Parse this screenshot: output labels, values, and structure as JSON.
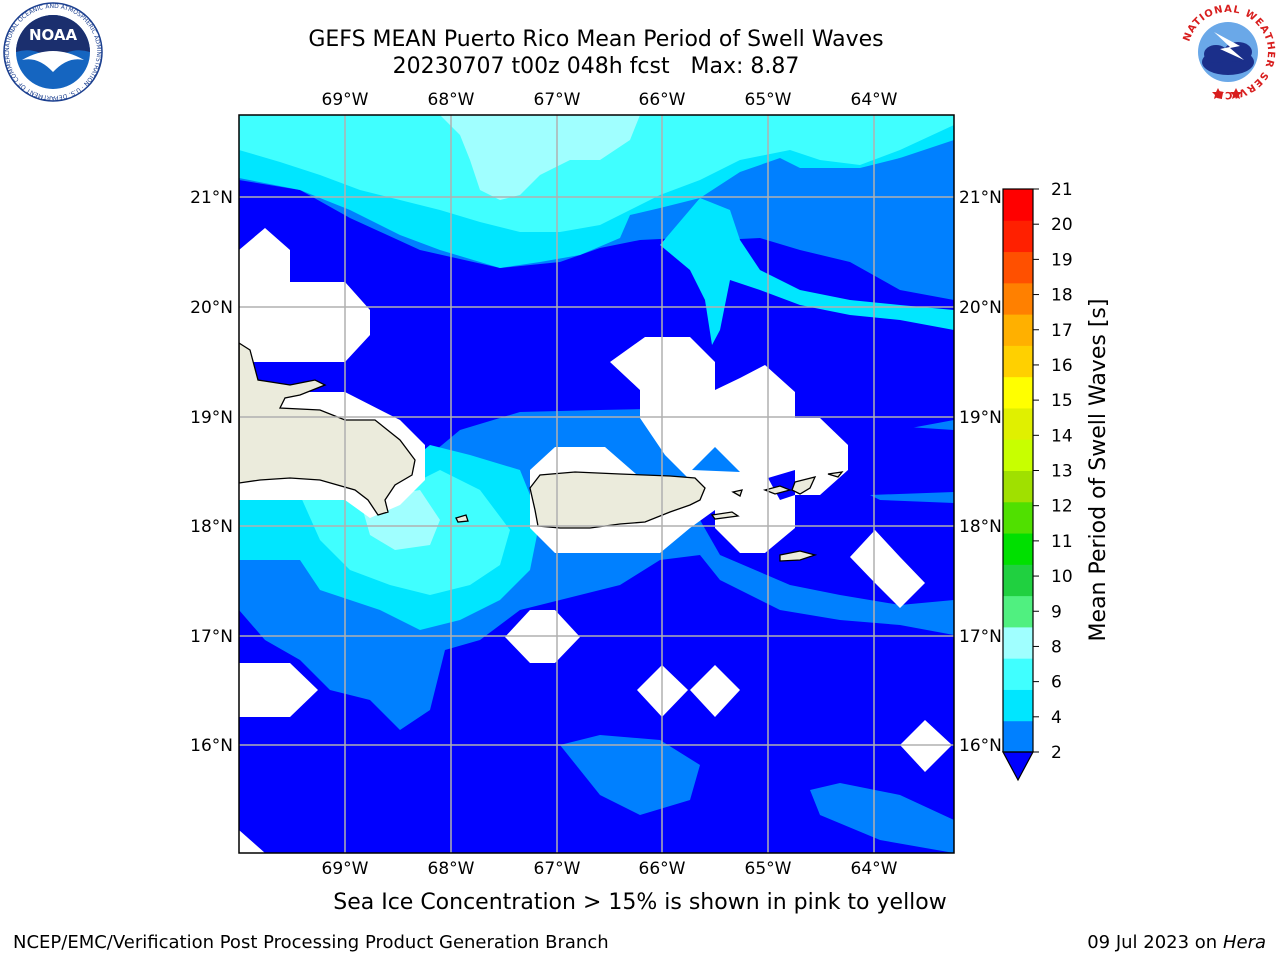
{
  "title": {
    "line1": "GEFS MEAN Puerto Rico Mean Period of Swell Waves",
    "line2": "20230707 t00z 048h fcst   Max: 8.87"
  },
  "map": {
    "longitude_labels": [
      "69°W",
      "68°W",
      "67°W",
      "66°W",
      "65°W",
      "64°W"
    ],
    "latitude_labels": [
      "21°N",
      "20°N",
      "19°N",
      "18°N",
      "17°N",
      "16°N"
    ],
    "land_color": "#ebebdc",
    "grid_color": "#b0b0b0"
  },
  "colorbar": {
    "label": "Mean Period of Swell Waves [s]",
    "ticks": [
      "2",
      "4",
      "6",
      "8",
      "9",
      "10",
      "11",
      "12",
      "13",
      "14",
      "15",
      "16",
      "17",
      "18",
      "19",
      "20",
      "21"
    ],
    "colors": [
      "#0080ff",
      "#00e6ff",
      "#40ffff",
      "#a0ffff",
      "#50f080",
      "#20d040",
      "#00e000",
      "#50e000",
      "#a0e000",
      "#c8ff00",
      "#e0f000",
      "#ffff00",
      "#ffd000",
      "#ffb000",
      "#ff8000",
      "#ff5000",
      "#ff2000",
      "#ff0000"
    ],
    "under_color": "#0000ff"
  },
  "logos": {
    "noaa_text": "NOAA",
    "noaa_ring": "NATIONAL OCEANIC AND ATMOSPHERIC ADMINISTRATION · U.S. DEPARTMENT OF COMMERCE",
    "nws_ring": "NATIONAL WEATHER SERVICE"
  },
  "footer": {
    "note": "Sea Ice Concentration > 15% is shown in pink to yellow",
    "left": "NCEP/EMC/Verification Post Processing Product Generation Branch",
    "right_date": "09 Jul 2023 on ",
    "right_machine": "Hera"
  }
}
